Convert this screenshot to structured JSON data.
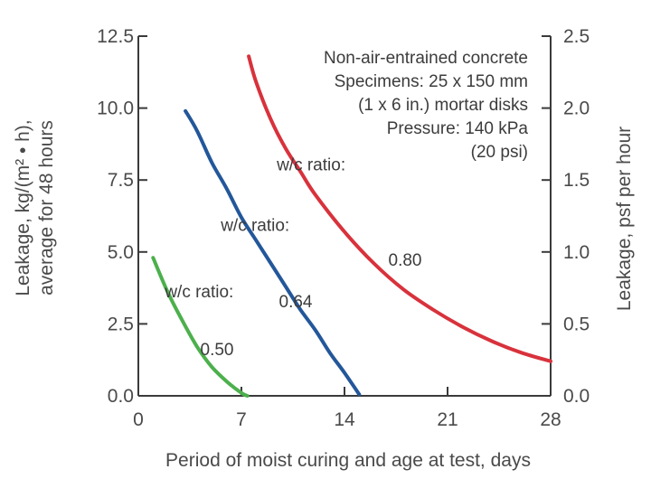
{
  "chart_data": {
    "type": "line",
    "xlabel": "Period of moist curing and age at test, days",
    "ylabel_lines": [
      "Leakage, kg/(m² • h),",
      "average for 48 hours"
    ],
    "y2label": "Leakage, psf per hour",
    "xlim": [
      0,
      28
    ],
    "ylim": [
      0,
      12.5
    ],
    "y2lim": [
      0,
      2.5
    ],
    "x_ticks": [
      "0",
      "7",
      "14",
      "21",
      "28"
    ],
    "x_tick_values": [
      0,
      7,
      14,
      21,
      28
    ],
    "y_ticks": [
      "0.0",
      "2.5",
      "5.0",
      "7.5",
      "10.0",
      "12.5"
    ],
    "y_tick_values": [
      0,
      2.5,
      5,
      7.5,
      10,
      12.5
    ],
    "y2_ticks": [
      "0.0",
      "0.5",
      "1.0",
      "1.5",
      "2.0",
      "2.5"
    ],
    "y2_tick_values": [
      0,
      0.5,
      1,
      1.5,
      2,
      2.5
    ],
    "grid": false,
    "annotation_lines": [
      "Non-air-entrained concrete",
      "Specimens: 25 x 150 mm",
      "(1 x 6 in.) mortar disks",
      "Pressure: 140 kPa",
      "(20 psi)"
    ],
    "series": [
      {
        "label_lines": [
          "w/c ratio:",
          "0.50"
        ],
        "color": "#4cb04c",
        "x": [
          1,
          2,
          3,
          4,
          5,
          6,
          7,
          7.4
        ],
        "y": [
          4.8,
          3.6,
          2.6,
          1.7,
          1.0,
          0.5,
          0.1,
          0.0
        ]
      },
      {
        "label_lines": [
          "w/c ratio:",
          "0.64"
        ],
        "color": "#23579a",
        "x": [
          3.2,
          4,
          5,
          6,
          7,
          8,
          9,
          10,
          11,
          12,
          13,
          14,
          15
        ],
        "y": [
          9.9,
          9.2,
          8.1,
          7.2,
          6.2,
          5.4,
          4.6,
          3.8,
          3.0,
          2.3,
          1.5,
          0.8,
          0.05
        ]
      },
      {
        "label_lines": [
          "w/c ratio:",
          "0.80"
        ],
        "color": "#d8323c",
        "x": [
          7.5,
          8,
          9,
          10,
          11,
          12,
          14,
          16,
          18,
          20,
          22,
          24,
          26,
          28
        ],
        "y": [
          11.8,
          10.9,
          9.6,
          8.6,
          7.8,
          7.0,
          5.7,
          4.6,
          3.7,
          3.0,
          2.4,
          1.9,
          1.5,
          1.2
        ]
      }
    ]
  }
}
